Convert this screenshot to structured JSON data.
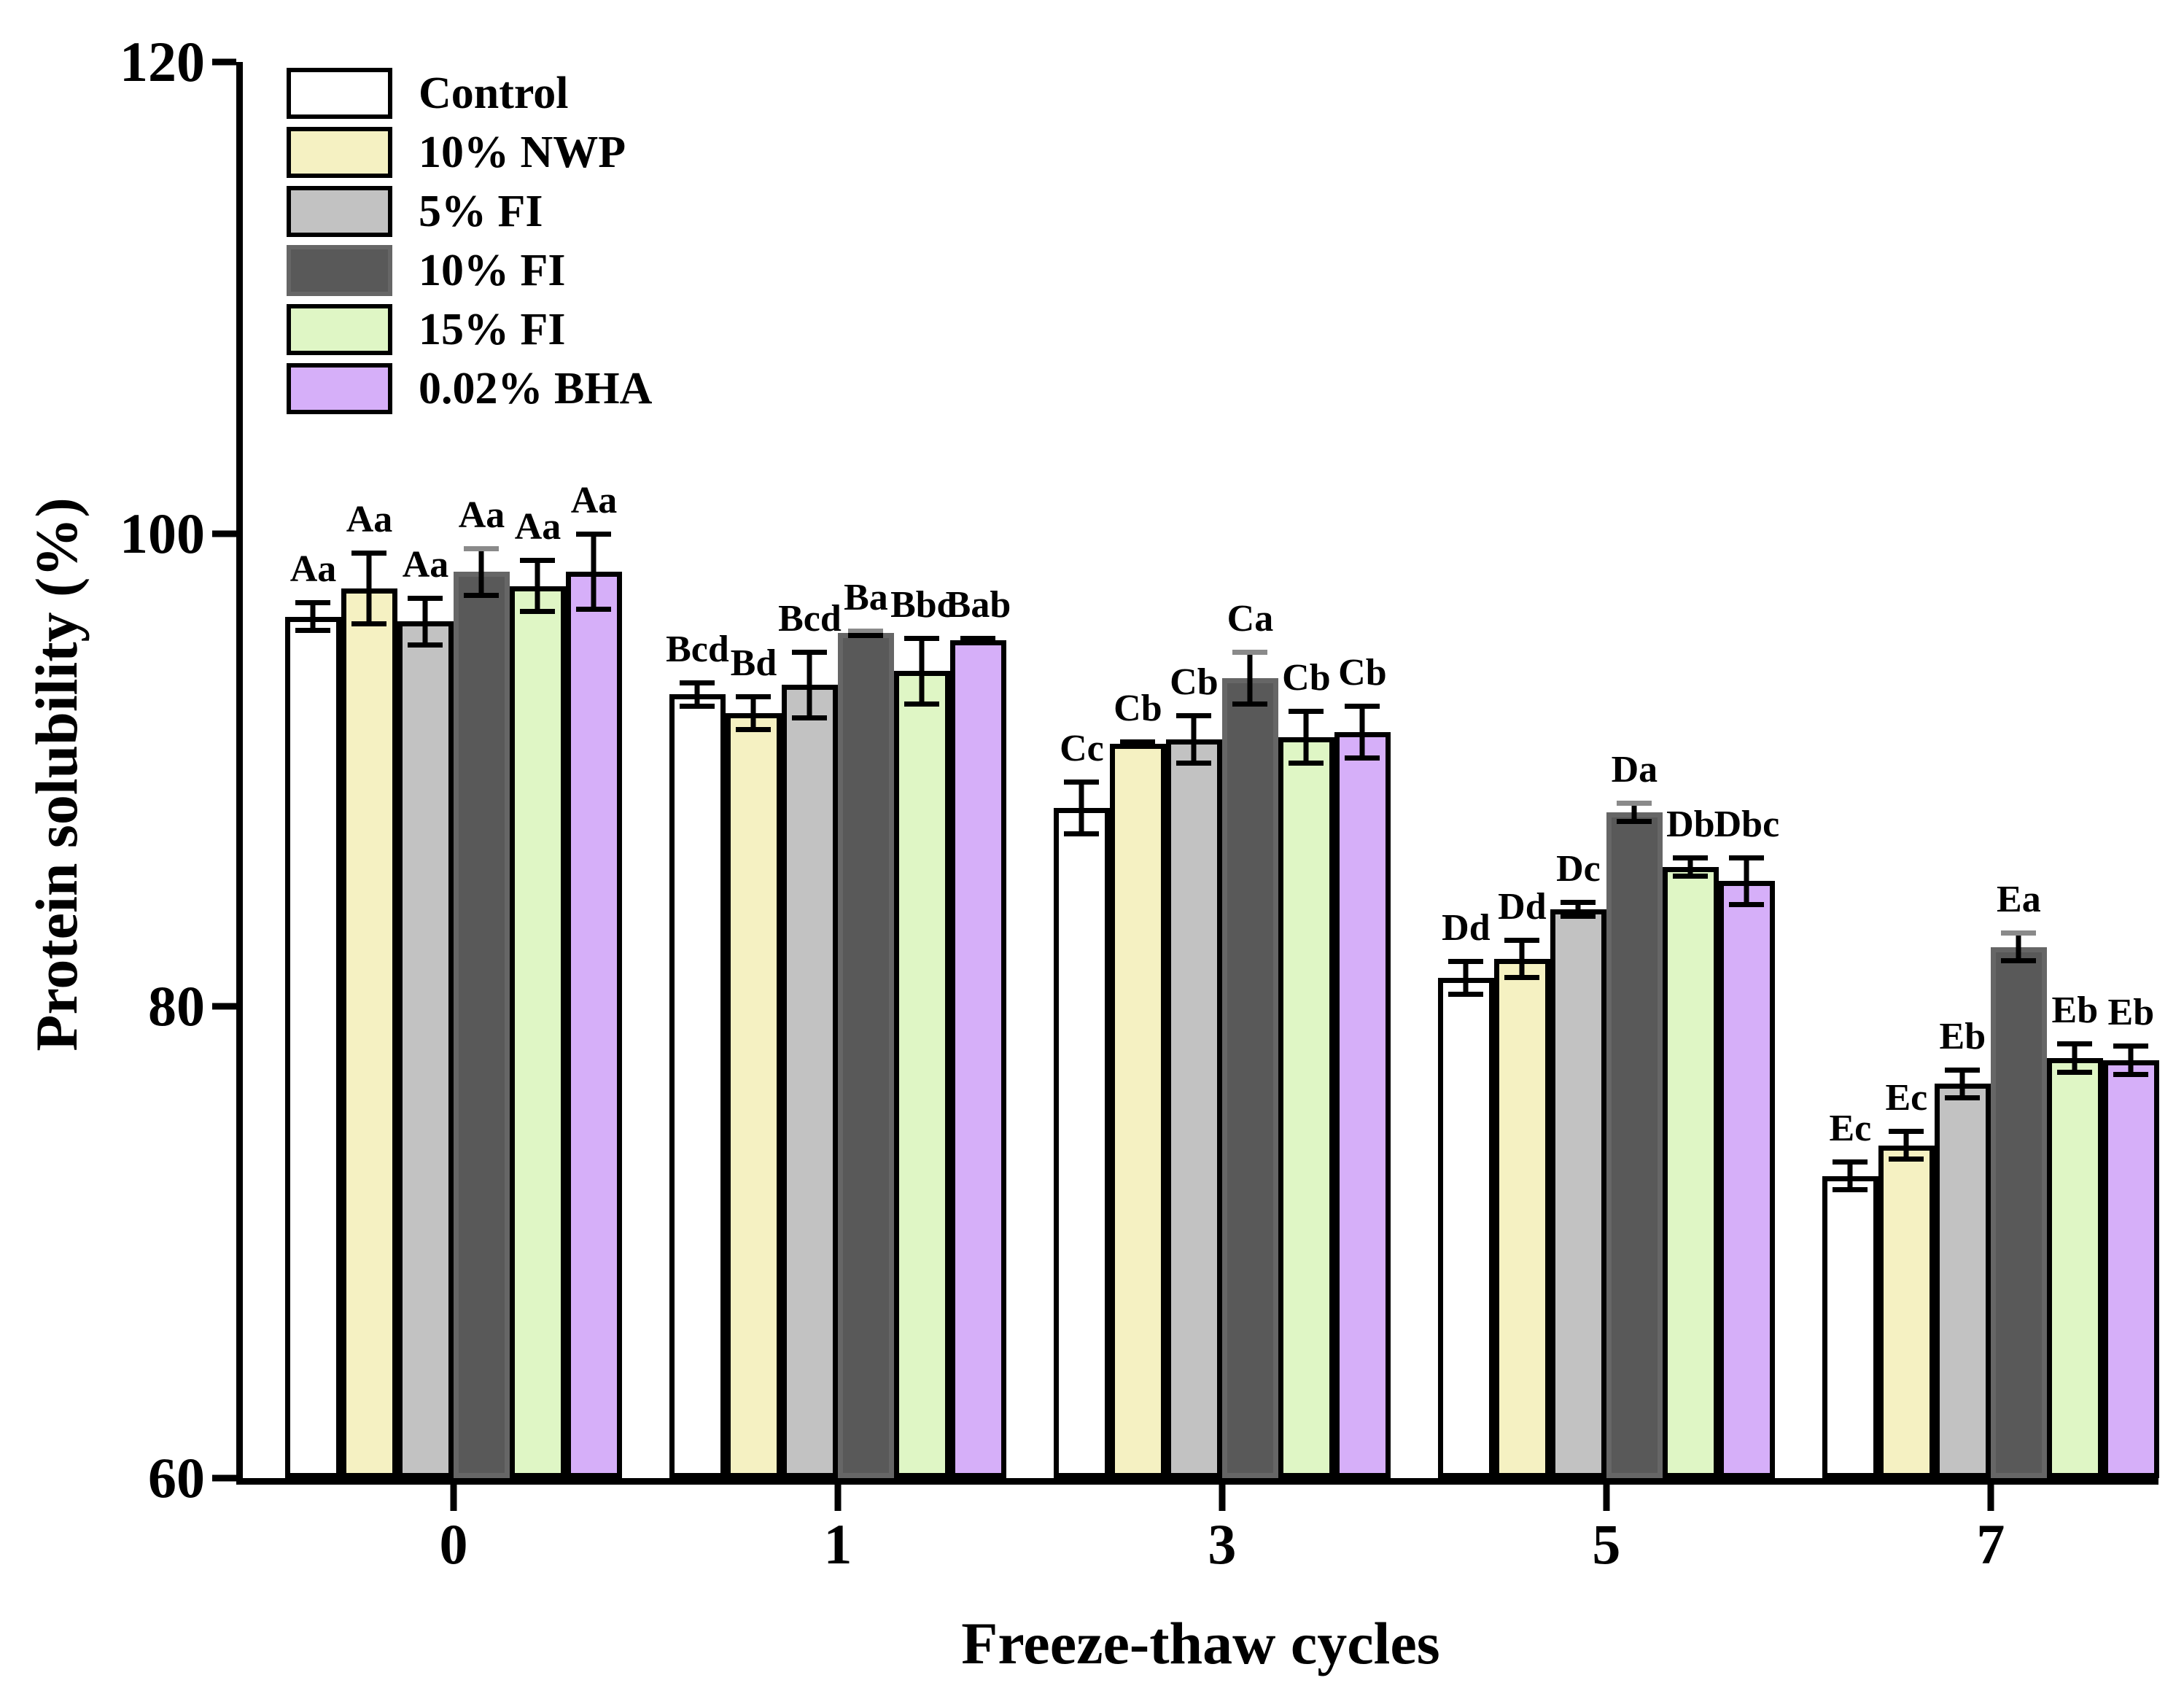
{
  "chart_data": {
    "type": "bar",
    "title": "",
    "xlabel": "Freeze-thaw cycles",
    "ylabel": "Protein solubility (%)",
    "ylim": [
      60,
      120
    ],
    "y_ticks": [
      60,
      80,
      100,
      120
    ],
    "categories": [
      "0",
      "1",
      "3",
      "5",
      "7"
    ],
    "grid": false,
    "legend_position": "upper-left-inside",
    "axis_color": "#000000",
    "series": [
      {
        "name": "Control",
        "fill": "#FFFFFF",
        "edge": "#000000",
        "values": [
          96.5,
          93.2,
          88.4,
          81.2,
          72.8
        ],
        "errors": [
          0.7,
          0.6,
          1.2,
          0.8,
          0.7
        ],
        "sig_labels": [
          "Aa",
          "Bcd",
          "Cc",
          "Dd",
          "Ec"
        ]
      },
      {
        "name": "10% NWP",
        "fill": "#F5F1C2",
        "edge": "#000000",
        "values": [
          97.7,
          92.4,
          91.1,
          82.0,
          74.1
        ],
        "errors": [
          1.6,
          0.8,
          0.2,
          0.9,
          0.7
        ],
        "sig_labels": [
          "Aa",
          "Bd",
          "Cb",
          "Dd",
          "Ec"
        ]
      },
      {
        "name": "5% FI",
        "fill": "#C2C2C2",
        "edge": "#000000",
        "values": [
          96.3,
          93.6,
          91.3,
          84.1,
          76.7
        ],
        "errors": [
          1.1,
          1.5,
          1.1,
          0.4,
          0.7
        ],
        "sig_labels": [
          "Aa",
          "Bcd",
          "Cb",
          "Dc",
          "Eb"
        ]
      },
      {
        "name": "10% FI",
        "fill": "#595959",
        "edge": "#666666",
        "err_cap_top": "#8A8A8A",
        "values": [
          98.4,
          95.8,
          93.9,
          88.2,
          82.5
        ],
        "errors": [
          1.1,
          0.2,
          1.2,
          0.5,
          0.7
        ],
        "sig_labels": [
          "Aa",
          "Ba",
          "Ca",
          "Da",
          "Ea"
        ]
      },
      {
        "name": "15% FI",
        "fill": "#DFF6C5",
        "edge": "#000000",
        "values": [
          97.8,
          94.2,
          91.4,
          85.9,
          77.8
        ],
        "errors": [
          1.2,
          1.5,
          1.2,
          0.5,
          0.7
        ],
        "sig_labels": [
          "Aa",
          "Bbc",
          "Cb",
          "Db",
          "Eb"
        ]
      },
      {
        "name": "0.02% BHA",
        "fill": "#D6AFF9",
        "edge": "#000000",
        "values": [
          98.4,
          95.5,
          91.6,
          85.3,
          77.7
        ],
        "errors": [
          1.7,
          0.2,
          1.2,
          1.1,
          0.7
        ],
        "sig_labels": [
          "Aa",
          "Bab",
          "Cb",
          "Dbc",
          "Eb"
        ]
      }
    ]
  }
}
